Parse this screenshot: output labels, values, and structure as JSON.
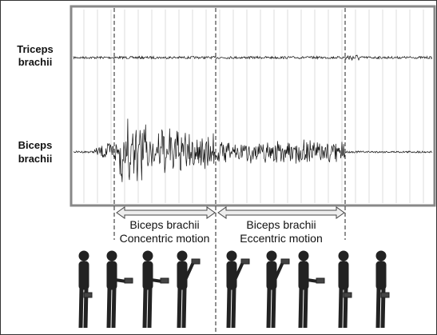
{
  "signals": [
    {
      "label": [
        "Triceps",
        "brachii"
      ]
    },
    {
      "label": [
        "Biceps",
        "brachii"
      ]
    }
  ],
  "phases": [
    {
      "label": [
        "Biceps brachii",
        "Concentric motion"
      ]
    },
    {
      "label": [
        "Biceps brachii",
        "Eccentric motion"
      ]
    }
  ]
}
